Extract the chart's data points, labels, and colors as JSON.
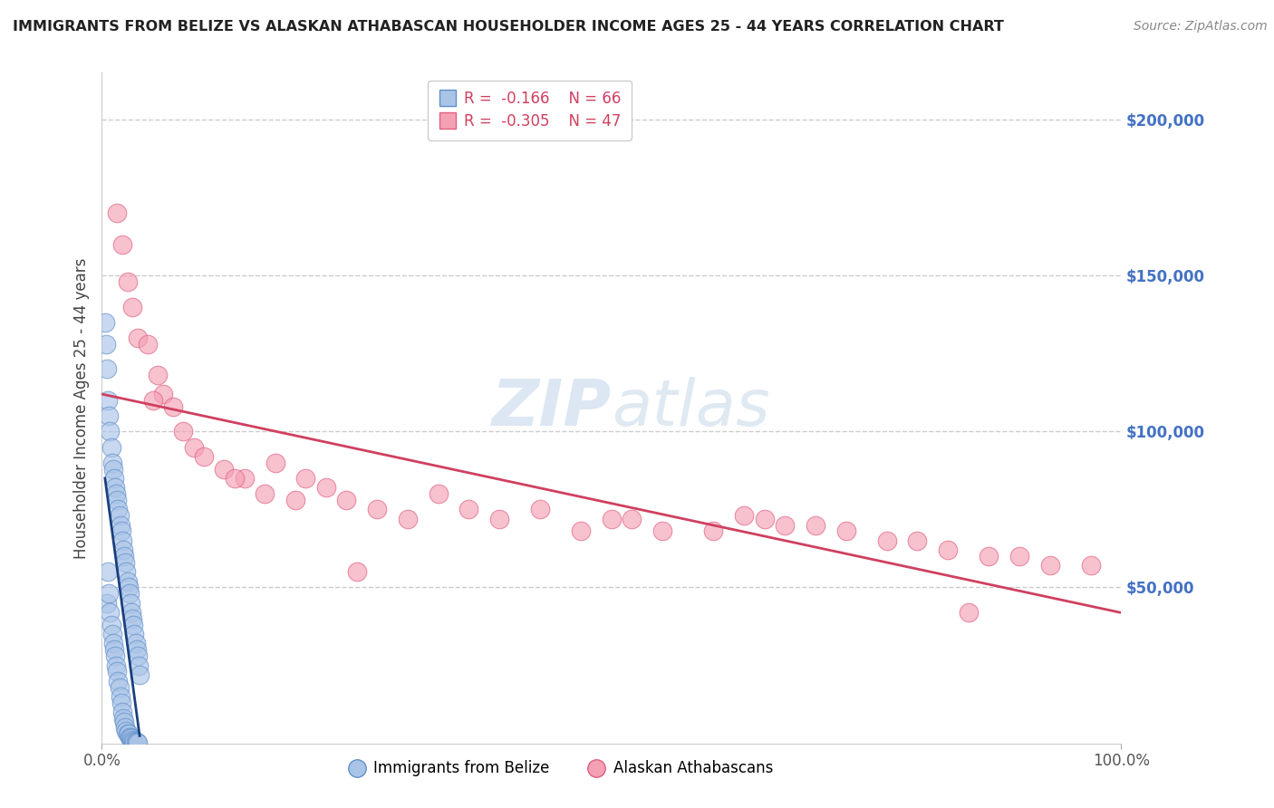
{
  "title": "IMMIGRANTS FROM BELIZE VS ALASKAN ATHABASCAN HOUSEHOLDER INCOME AGES 25 - 44 YEARS CORRELATION CHART",
  "source": "Source: ZipAtlas.com",
  "ylabel": "Householder Income Ages 25 - 44 years",
  "yaxis_labels": [
    "$200,000",
    "$150,000",
    "$100,000",
    "$50,000"
  ],
  "yaxis_values": [
    200000,
    150000,
    100000,
    50000
  ],
  "legend_blue_r": "R =  -0.166",
  "legend_blue_n": "N = 66",
  "legend_pink_r": "R =  -0.305",
  "legend_pink_n": "N = 47",
  "blue_color": "#aac4e8",
  "pink_color": "#f4a0b5",
  "blue_edge_color": "#6090c8",
  "pink_edge_color": "#e06080",
  "blue_line_color": "#1a4080",
  "pink_line_color": "#d04060",
  "dashed_line_color": "#a0b8d0",
  "watermark_color": "#c5d8ec",
  "belize_x": [
    0.3,
    0.4,
    0.5,
    0.5,
    0.6,
    0.6,
    0.7,
    0.7,
    0.8,
    0.8,
    0.9,
    0.9,
    1.0,
    1.0,
    1.1,
    1.1,
    1.2,
    1.2,
    1.3,
    1.3,
    1.4,
    1.4,
    1.5,
    1.5,
    1.6,
    1.6,
    1.7,
    1.7,
    1.8,
    1.8,
    1.9,
    1.9,
    2.0,
    2.0,
    2.1,
    2.1,
    2.2,
    2.2,
    2.3,
    2.3,
    2.4,
    2.4,
    2.5,
    2.5,
    2.6,
    2.6,
    2.7,
    2.7,
    2.8,
    2.8,
    2.9,
    2.9,
    3.0,
    3.0,
    3.1,
    3.1,
    3.2,
    3.2,
    3.3,
    3.3,
    3.4,
    3.4,
    3.5,
    3.5,
    3.6,
    3.7
  ],
  "belize_y": [
    135000,
    128000,
    120000,
    45000,
    110000,
    55000,
    105000,
    48000,
    100000,
    42000,
    95000,
    38000,
    90000,
    35000,
    88000,
    32000,
    85000,
    30000,
    82000,
    28000,
    80000,
    25000,
    78000,
    23000,
    75000,
    20000,
    73000,
    18000,
    70000,
    15000,
    68000,
    13000,
    65000,
    10000,
    62000,
    8000,
    60000,
    7000,
    58000,
    5000,
    55000,
    4000,
    52000,
    3000,
    50000,
    3000,
    48000,
    2000,
    45000,
    2000,
    42000,
    1500,
    40000,
    1000,
    38000,
    800,
    35000,
    600,
    32000,
    500,
    30000,
    400,
    28000,
    300,
    25000,
    22000
  ],
  "athabascan_x": [
    1.5,
    2.0,
    2.5,
    3.0,
    3.5,
    4.5,
    5.5,
    6.0,
    7.0,
    9.0,
    10.0,
    12.0,
    14.0,
    16.0,
    17.0,
    19.0,
    20.0,
    22.0,
    24.0,
    27.0,
    30.0,
    33.0,
    36.0,
    39.0,
    43.0,
    47.0,
    52.0,
    55.0,
    60.0,
    63.0,
    67.0,
    70.0,
    73.0,
    77.0,
    80.0,
    83.0,
    87.0,
    90.0,
    93.0,
    97.0,
    5.0,
    8.0,
    13.0,
    25.0,
    50.0,
    65.0,
    85.0
  ],
  "athabascan_y": [
    170000,
    160000,
    148000,
    140000,
    130000,
    128000,
    118000,
    112000,
    108000,
    95000,
    92000,
    88000,
    85000,
    80000,
    90000,
    78000,
    85000,
    82000,
    78000,
    75000,
    72000,
    80000,
    75000,
    72000,
    75000,
    68000,
    72000,
    68000,
    68000,
    73000,
    70000,
    70000,
    68000,
    65000,
    65000,
    62000,
    60000,
    60000,
    57000,
    57000,
    110000,
    100000,
    85000,
    55000,
    72000,
    72000,
    42000
  ]
}
